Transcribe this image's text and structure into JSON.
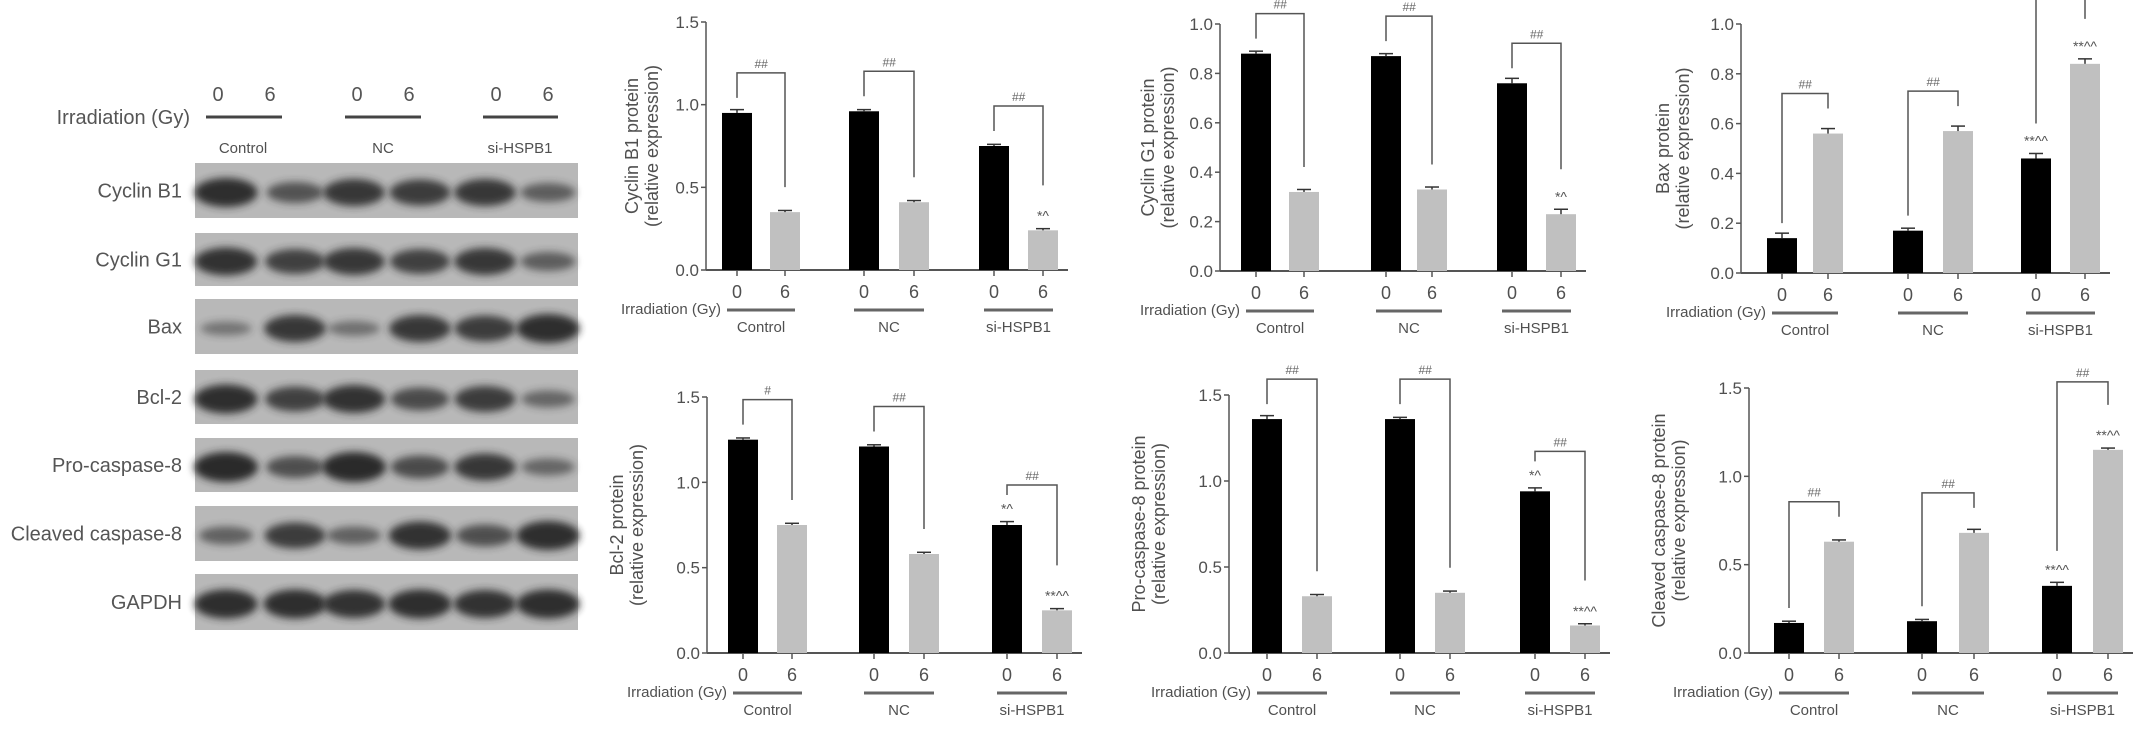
{
  "blot": {
    "xlabel": "Irradiation (Gy)",
    "doses": [
      "0",
      "6"
    ],
    "groups": [
      "Control",
      "NC",
      "si-HSPB1"
    ],
    "background_color": "#b8b8b8",
    "band_color": "#2a2a2a",
    "rows": [
      {
        "label": "Cyclin B1",
        "band_intensity": [
          0.95,
          0.55,
          0.85,
          0.8,
          0.85,
          0.45
        ]
      },
      {
        "label": "Cyclin G1",
        "band_intensity": [
          0.9,
          0.75,
          0.85,
          0.75,
          0.85,
          0.45
        ]
      },
      {
        "label": "Bax",
        "band_intensity": [
          0.2,
          0.85,
          0.25,
          0.85,
          0.8,
          0.95
        ]
      },
      {
        "label": "Bcl-2",
        "band_intensity": [
          0.95,
          0.75,
          0.9,
          0.65,
          0.8,
          0.35
        ]
      },
      {
        "label": "Pro-caspase-8",
        "band_intensity": [
          1.0,
          0.6,
          1.0,
          0.65,
          0.85,
          0.35
        ]
      },
      {
        "label": "Cleaved caspase-8",
        "band_intensity": [
          0.4,
          0.8,
          0.4,
          0.9,
          0.6,
          0.95
        ]
      },
      {
        "label": "GAPDH",
        "band_intensity": [
          0.95,
          0.95,
          0.9,
          0.95,
          0.9,
          0.95
        ]
      }
    ]
  },
  "chart_data": [
    {
      "type": "bar",
      "ylabel": [
        "Cyclin B1 protein",
        "(relative expression)"
      ],
      "xlabel": "Irradiation (Gy)",
      "categories": [
        "Control",
        "NC",
        "si-HSPB1"
      ],
      "ylim": [
        0,
        1.5
      ],
      "yticks": [
        "0.0",
        "0.5",
        "1.0",
        "1.5"
      ],
      "series": [
        {
          "name": "0",
          "color": "#000000",
          "values": [
            0.95,
            0.96,
            0.75
          ],
          "errors": [
            0.02,
            0.01,
            0.01
          ]
        },
        {
          "name": "6",
          "color": "#c0c0c0",
          "values": [
            0.35,
            0.41,
            0.24
          ],
          "errors": [
            0.01,
            0.01,
            0.01
          ]
        }
      ],
      "significance": [
        "##",
        "##",
        "##"
      ],
      "annotations": [
        {
          "group": 2,
          "series": 1,
          "label": "*^"
        }
      ]
    },
    {
      "type": "bar",
      "ylabel": [
        "Cyclin G1 protein",
        "(relative expression)"
      ],
      "xlabel": "Irradiation (Gy)",
      "categories": [
        "Control",
        "NC",
        "si-HSPB1"
      ],
      "ylim": [
        0,
        1.0
      ],
      "yticks": [
        "0.0",
        "0.2",
        "0.4",
        "0.6",
        "0.8",
        "1.0"
      ],
      "series": [
        {
          "name": "0",
          "color": "#000000",
          "values": [
            0.88,
            0.87,
            0.76
          ],
          "errors": [
            0.01,
            0.01,
            0.02
          ]
        },
        {
          "name": "6",
          "color": "#c0c0c0",
          "values": [
            0.32,
            0.33,
            0.23
          ],
          "errors": [
            0.01,
            0.01,
            0.02
          ]
        }
      ],
      "significance": [
        "##",
        "##",
        "##"
      ],
      "annotations": [
        {
          "group": 2,
          "series": 1,
          "label": "*^"
        }
      ]
    },
    {
      "type": "bar",
      "ylabel": [
        "Bax protein",
        "(relative expression)"
      ],
      "xlabel": "Irradiation (Gy)",
      "categories": [
        "Control",
        "NC",
        "si-HSPB1"
      ],
      "ylim": [
        0,
        1.0
      ],
      "yticks": [
        "0.0",
        "0.2",
        "0.4",
        "0.6",
        "0.8",
        "1.0"
      ],
      "series": [
        {
          "name": "0",
          "color": "#000000",
          "values": [
            0.14,
            0.17,
            0.46
          ],
          "errors": [
            0.02,
            0.01,
            0.02
          ]
        },
        {
          "name": "6",
          "color": "#c0c0c0",
          "values": [
            0.56,
            0.57,
            0.84
          ],
          "errors": [
            0.02,
            0.02,
            0.02
          ]
        }
      ],
      "significance": [
        "##",
        "##",
        "##"
      ],
      "annotations": [
        {
          "group": 2,
          "series": 0,
          "label": "**^^"
        },
        {
          "group": 2,
          "series": 1,
          "label": "**^^"
        }
      ]
    },
    {
      "type": "bar",
      "ylabel": [
        "Bcl-2 protein",
        "(relative expression)"
      ],
      "xlabel": "Irradiation (Gy)",
      "categories": [
        "Control",
        "NC",
        "si-HSPB1"
      ],
      "ylim": [
        0,
        1.5
      ],
      "yticks": [
        "0.0",
        "0.5",
        "1.0",
        "1.5"
      ],
      "series": [
        {
          "name": "0",
          "color": "#000000",
          "values": [
            1.25,
            1.21,
            0.75
          ],
          "errors": [
            0.01,
            0.01,
            0.02
          ]
        },
        {
          "name": "6",
          "color": "#c0c0c0",
          "values": [
            0.75,
            0.58,
            0.25
          ],
          "errors": [
            0.01,
            0.01,
            0.01
          ]
        }
      ],
      "significance": [
        "#",
        "##",
        "##"
      ],
      "annotations": [
        {
          "group": 2,
          "series": 0,
          "label": "*^"
        },
        {
          "group": 2,
          "series": 1,
          "label": "**^^"
        }
      ]
    },
    {
      "type": "bar",
      "ylabel": [
        "Pro-caspase-8 protein",
        "(relative expression)"
      ],
      "xlabel": "Irradiation (Gy)",
      "categories": [
        "Control",
        "NC",
        "si-HSPB1"
      ],
      "ylim": [
        0,
        1.5
      ],
      "yticks": [
        "0.0",
        "0.5",
        "1.0",
        "1.5"
      ],
      "series": [
        {
          "name": "0",
          "color": "#000000",
          "values": [
            1.36,
            1.36,
            0.94
          ],
          "errors": [
            0.02,
            0.01,
            0.02
          ]
        },
        {
          "name": "6",
          "color": "#c0c0c0",
          "values": [
            0.33,
            0.35,
            0.16
          ],
          "errors": [
            0.01,
            0.01,
            0.01
          ]
        }
      ],
      "significance": [
        "##",
        "##",
        "##"
      ],
      "annotations": [
        {
          "group": 2,
          "series": 0,
          "label": "*^"
        },
        {
          "group": 2,
          "series": 1,
          "label": "**^^"
        }
      ]
    },
    {
      "type": "bar",
      "ylabel": [
        "Cleaved caspase-8 protein",
        "(relative expression)"
      ],
      "xlabel": "Irradiation (Gy)",
      "categories": [
        "Control",
        "NC",
        "si-HSPB1"
      ],
      "ylim": [
        0,
        1.5
      ],
      "yticks": [
        "0.0",
        "0.5",
        "1.0",
        "1.5"
      ],
      "series": [
        {
          "name": "0",
          "color": "#000000",
          "values": [
            0.17,
            0.18,
            0.38
          ],
          "errors": [
            0.01,
            0.01,
            0.02
          ]
        },
        {
          "name": "6",
          "color": "#c0c0c0",
          "values": [
            0.63,
            0.68,
            1.15
          ],
          "errors": [
            0.01,
            0.02,
            0.01
          ]
        }
      ],
      "significance": [
        "##",
        "##",
        "##"
      ],
      "annotations": [
        {
          "group": 2,
          "series": 0,
          "label": "**^^"
        },
        {
          "group": 2,
          "series": 1,
          "label": "**^^"
        }
      ]
    }
  ]
}
